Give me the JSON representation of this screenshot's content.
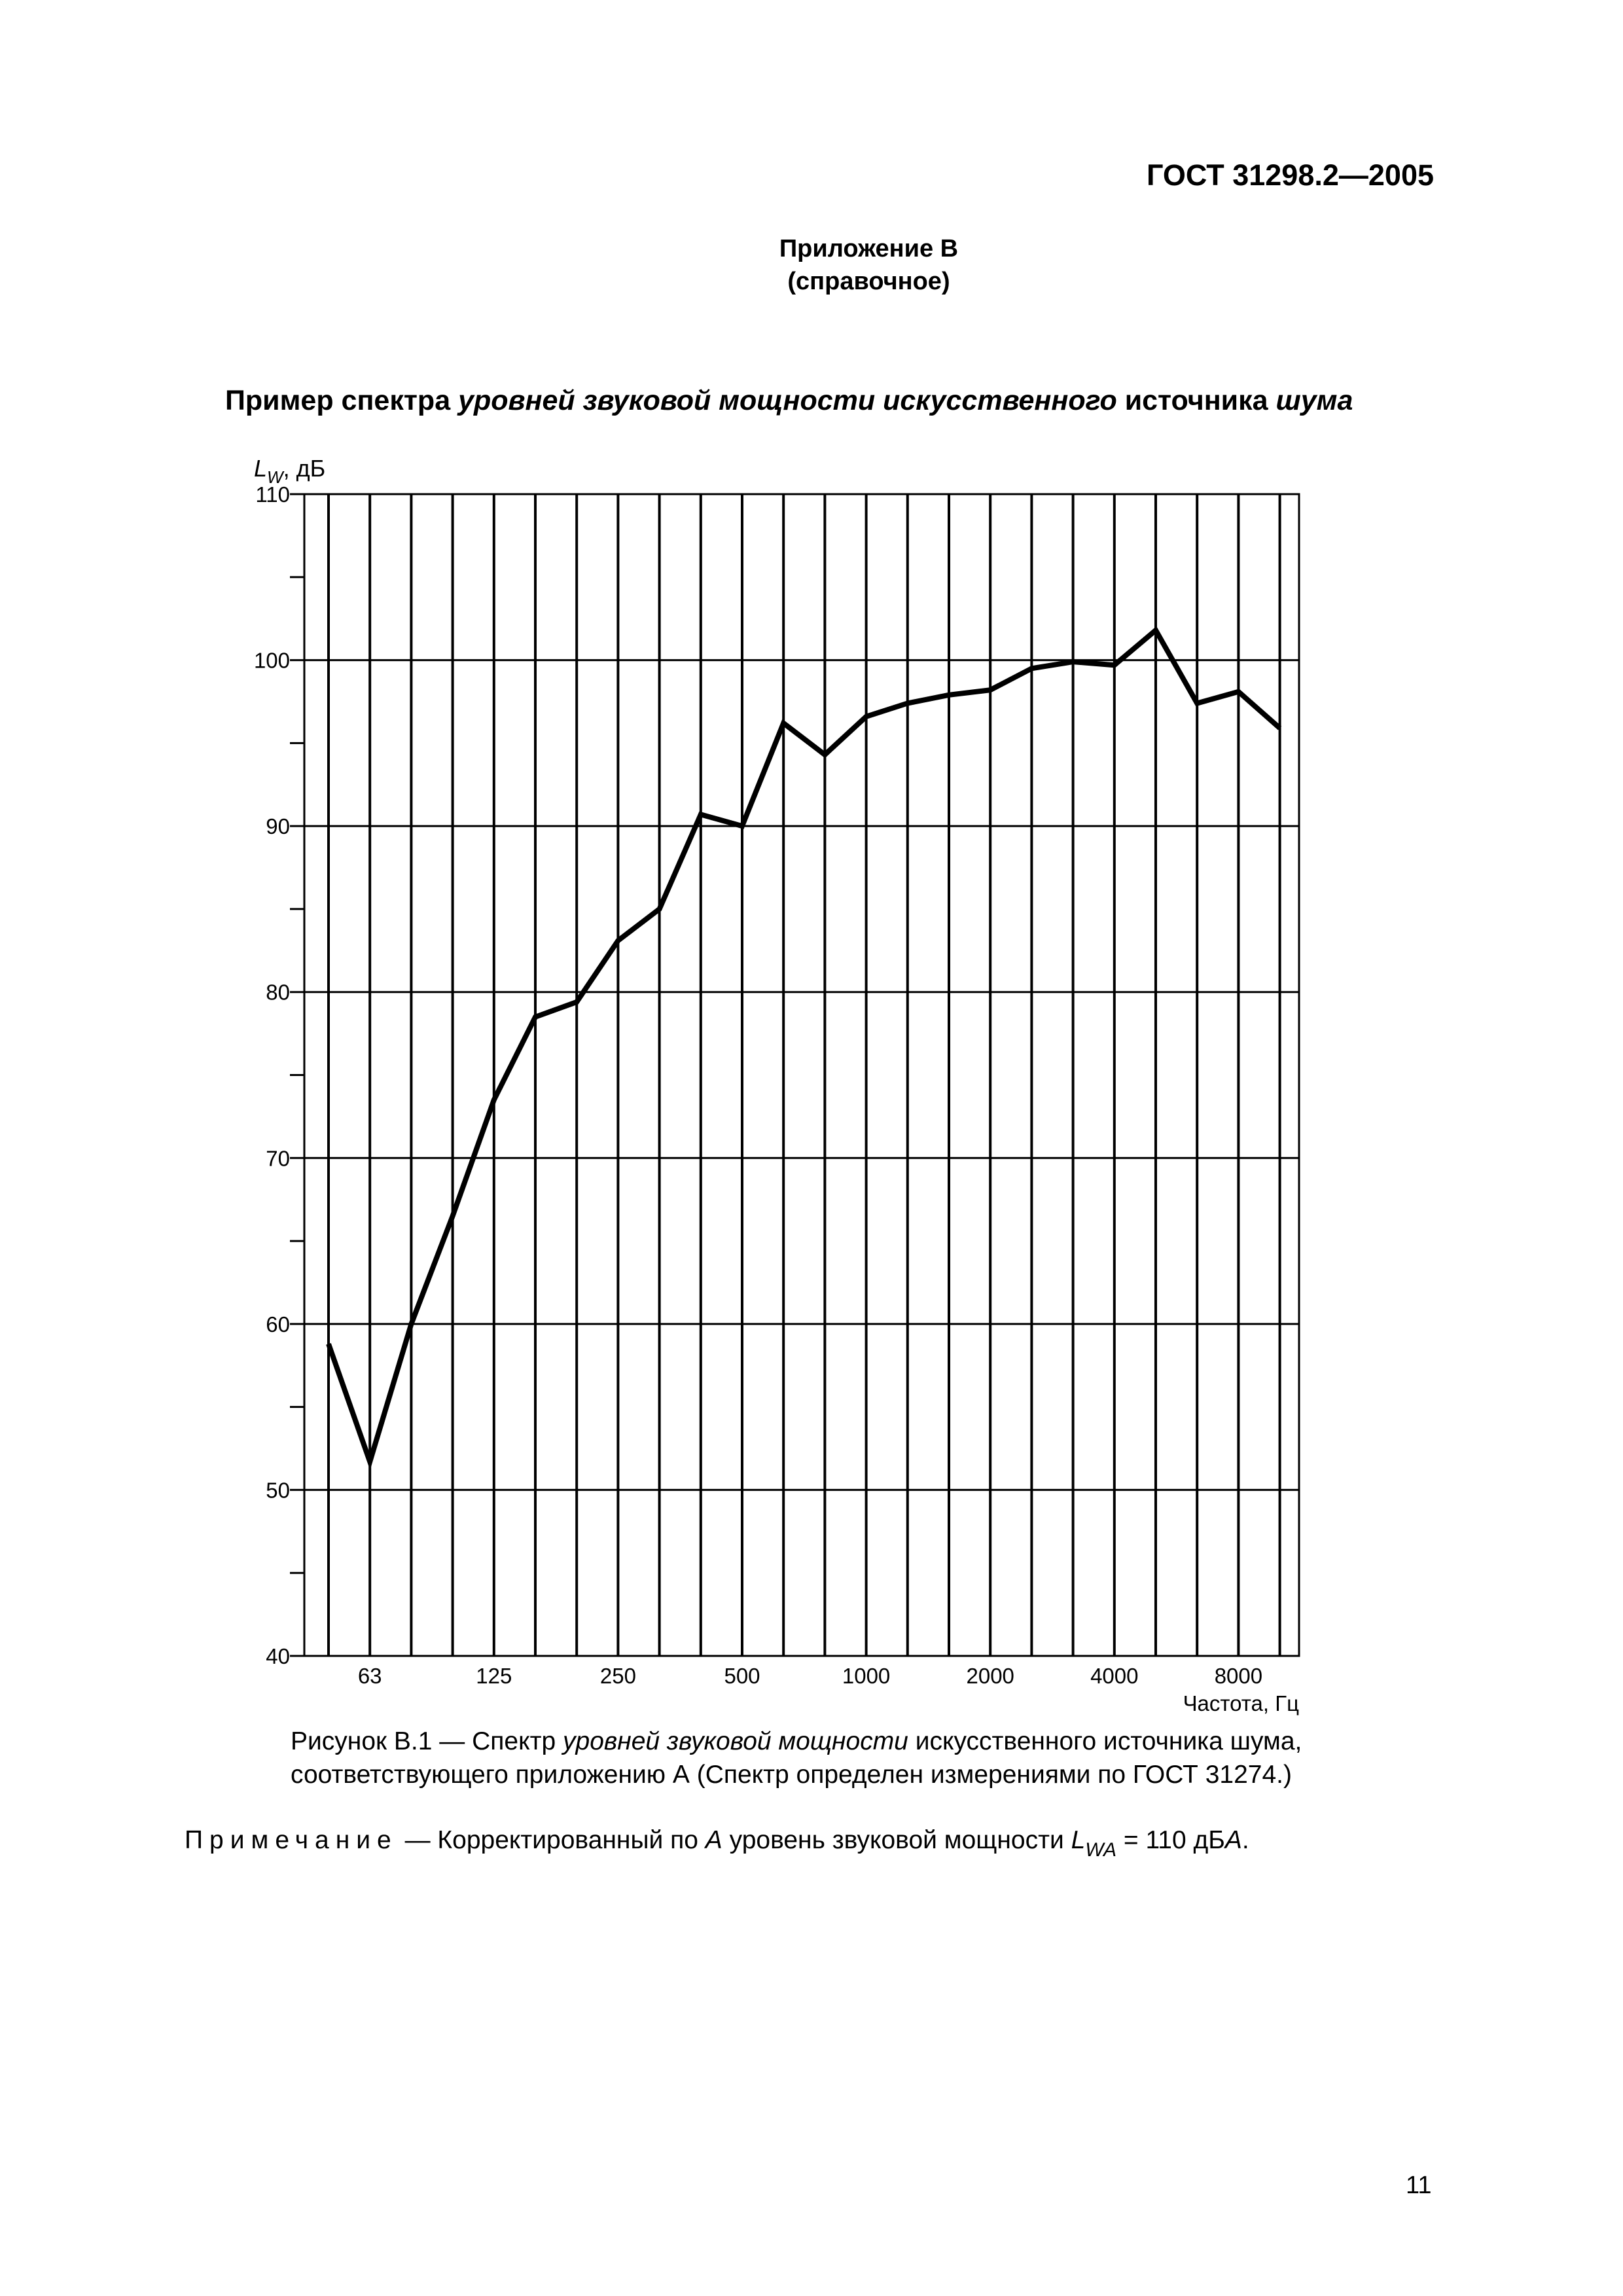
{
  "header": {
    "doc_code": "ГОСТ 31298.2—2005"
  },
  "appendix": {
    "line1": "Приложение В",
    "line2": "(справочное)"
  },
  "figure_title": {
    "part1": "Пример спектра ",
    "part2": "уровней звуковой мощности искусственного",
    "part3": " источника ",
    "part4": "шума"
  },
  "chart_data": {
    "type": "line",
    "ylabel_main": "L",
    "ylabel_sub": "W",
    "ylabel_unit": ", дБ",
    "xlabel": "Частота, Гц",
    "ylim": [
      40,
      110
    ],
    "y_ticks": [
      40,
      50,
      60,
      70,
      80,
      90,
      100,
      110
    ],
    "y_minor_ticks": [
      45,
      55,
      65,
      75,
      85,
      95,
      105
    ],
    "x_ticks": [
      {
        "label": "63",
        "index": 1
      },
      {
        "label": "125",
        "index": 4
      },
      {
        "label": "250",
        "index": 7
      },
      {
        "label": "500",
        "index": 10
      },
      {
        "label": "1000",
        "index": 13
      },
      {
        "label": "2000",
        "index": 16
      },
      {
        "label": "4000",
        "index": 19
      },
      {
        "label": "8000",
        "index": 22
      }
    ],
    "x": [
      "50",
      "63",
      "80",
      "100",
      "125",
      "160",
      "200",
      "250",
      "315",
      "400",
      "500",
      "630",
      "800",
      "1000",
      "1250",
      "1600",
      "2000",
      "2500",
      "3150",
      "4000",
      "5000",
      "6300",
      "8000",
      "10000"
    ],
    "values": [
      58.8,
      51.7,
      60.0,
      66.5,
      73.5,
      78.5,
      79.4,
      83.1,
      85.0,
      90.7,
      90.0,
      96.2,
      94.3,
      96.6,
      97.4,
      97.9,
      98.2,
      99.5,
      99.9,
      99.7,
      101.8,
      97.4,
      98.1,
      95.9
    ],
    "grid": true,
    "line_color": "#000000"
  },
  "caption": {
    "line1_a": "Рисунок В.1 — Спектр ",
    "line1_b": "уровней звуковой мощности",
    "line1_c": " искусственного источника шума,",
    "line2": "соответствующего приложению А (Спектр определен измерениями по ГОСТ 31274.)"
  },
  "note": {
    "label": "Примечание",
    "text_a": " — Корректированный по ",
    "text_b": "А",
    "text_c": " уровень звуковой мощности ",
    "symbol": "L",
    "symbol_sub": "WA",
    "text_d": " = 110 дБ",
    "text_e": "А",
    "text_f": "."
  },
  "page_number": "11"
}
